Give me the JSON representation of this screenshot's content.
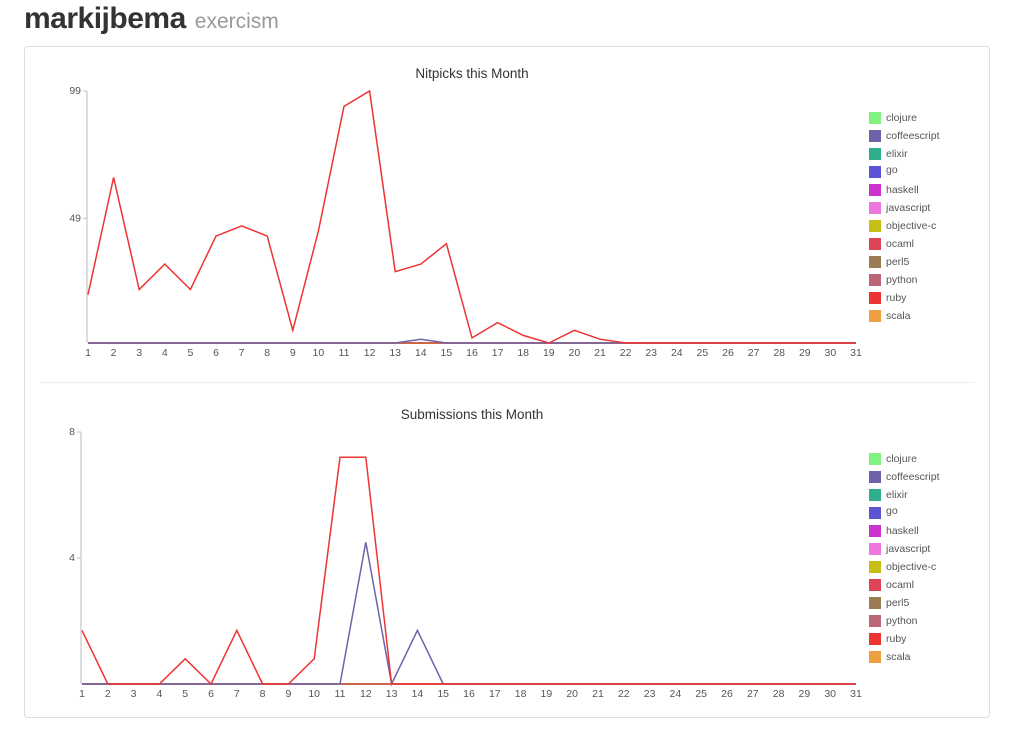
{
  "header": {
    "username": "markijbema",
    "subtitle": "exercism"
  },
  "legend_colors": {
    "clojure": "#7ff27f",
    "coffeescript": "#6e62a8",
    "elixir": "#2fae8e",
    "go": "#5a55d6",
    "haskell": "#cc33cc",
    "javascript": "#ee77dd",
    "objective-c": "#c8be18",
    "ocaml": "#dd4455",
    "perl5": "#9a7b54",
    "python": "#bb6677",
    "ruby": "#ee3333",
    "scala": "#eea040"
  },
  "chart_data": [
    {
      "type": "line",
      "title": "Nitpicks this Month",
      "x": [
        1,
        2,
        3,
        4,
        5,
        6,
        7,
        8,
        9,
        10,
        11,
        12,
        13,
        14,
        15,
        16,
        17,
        18,
        19,
        20,
        21,
        22,
        23,
        24,
        25,
        26,
        27,
        28,
        29,
        30,
        31
      ],
      "x_tick_labels": [
        "1",
        "2",
        "3",
        "4",
        "5",
        "6",
        "7",
        "8",
        "9",
        "10",
        "11",
        "12",
        "13",
        "14",
        "15",
        "16",
        "17",
        "18",
        "19",
        "20",
        "21",
        "22",
        "23",
        "24",
        "25",
        "26",
        "27",
        "28",
        "29",
        "30",
        "31"
      ],
      "ylim": [
        0,
        99
      ],
      "y_ticks": [
        49,
        99
      ],
      "y_tick_labels": [
        "49",
        "99"
      ],
      "legend": [
        "clojure",
        "coffeescript",
        "elixir",
        "go",
        "haskell",
        "javascript",
        "objective-c",
        "ocaml",
        "perl5",
        "python",
        "ruby",
        "scala"
      ],
      "legend_placement": "right",
      "series": [
        {
          "name": "ruby",
          "values": [
            19,
            65,
            21,
            31,
            21,
            42,
            46,
            42,
            5,
            44,
            93,
            99,
            28,
            31,
            39,
            2,
            8,
            3,
            0,
            5,
            1.5,
            0,
            0,
            0,
            0,
            0,
            0,
            0,
            0,
            0,
            0
          ]
        },
        {
          "name": "coffeescript",
          "values": [
            0,
            0,
            0,
            0,
            0,
            0,
            0,
            0,
            0,
            0,
            0,
            0,
            0,
            1.5,
            0,
            0,
            0,
            0,
            0,
            0,
            0,
            0,
            0,
            0,
            0,
            0,
            0,
            0,
            0,
            0,
            0
          ]
        }
      ]
    },
    {
      "type": "line",
      "title": "Submissions this Month",
      "x": [
        1,
        2,
        3,
        4,
        5,
        6,
        7,
        8,
        9,
        10,
        11,
        12,
        13,
        14,
        15,
        16,
        17,
        18,
        19,
        20,
        21,
        22,
        23,
        24,
        25,
        26,
        27,
        28,
        29,
        30,
        31
      ],
      "x_tick_labels": [
        "1",
        "2",
        "3",
        "4",
        "5",
        "6",
        "7",
        "8",
        "9",
        "10",
        "11",
        "12",
        "13",
        "14",
        "15",
        "16",
        "17",
        "18",
        "19",
        "20",
        "21",
        "22",
        "23",
        "24",
        "25",
        "26",
        "27",
        "28",
        "29",
        "30",
        "31"
      ],
      "ylim": [
        0,
        8
      ],
      "y_ticks": [
        4,
        8
      ],
      "y_tick_labels": [
        "4",
        "8"
      ],
      "legend": [
        "clojure",
        "coffeescript",
        "elixir",
        "go",
        "haskell",
        "javascript",
        "objective-c",
        "ocaml",
        "perl5",
        "python",
        "ruby",
        "scala"
      ],
      "legend_placement": "right",
      "series": [
        {
          "name": "ruby",
          "values": [
            1.7,
            0,
            0,
            0,
            0.8,
            0,
            1.7,
            0,
            0,
            0.8,
            7.2,
            7.2,
            0,
            0,
            0,
            0,
            0,
            0,
            0,
            0,
            0,
            0,
            0,
            0,
            0,
            0,
            0,
            0,
            0,
            0,
            0
          ]
        },
        {
          "name": "coffeescript",
          "values": [
            0,
            0,
            0,
            0,
            0,
            0,
            0,
            0,
            0,
            0,
            0,
            4.5,
            0,
            1.7,
            0,
            0,
            0,
            0,
            0,
            0,
            0,
            0,
            0,
            0,
            0,
            0,
            0,
            0,
            0,
            0,
            0
          ]
        }
      ]
    }
  ]
}
